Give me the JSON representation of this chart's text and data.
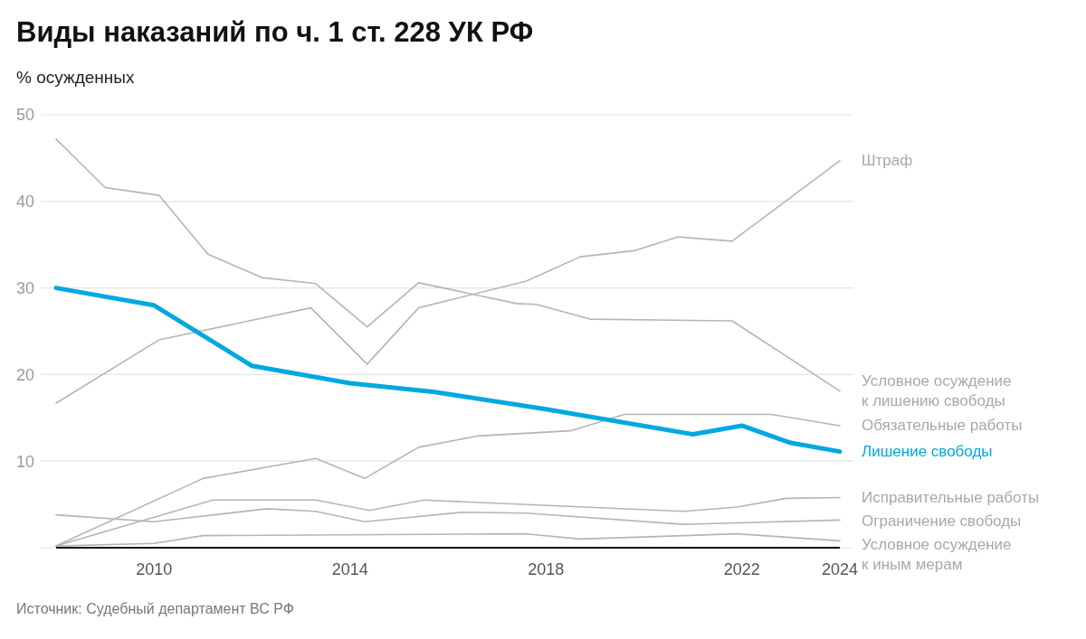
{
  "chart_data": {
    "type": "line",
    "title": "Виды наказаний по ч. 1 ст. 228 УК РФ",
    "ylabel": "% осужденных",
    "annotations": [
      "Источник: Судебный департамент ВС РФ"
    ],
    "xlim": [
      2008,
      2024
    ],
    "xticks": [
      2010,
      2014,
      2018,
      2022,
      2024
    ],
    "ylim": [
      0,
      50
    ],
    "yticks": [
      {
        "value": 0,
        "label": null
      },
      10,
      20,
      30,
      40,
      50
    ],
    "grid": "y",
    "marker": "none",
    "line_style": "solid",
    "series": [
      {
        "name": "Штраф",
        "color": "#b5b5b5",
        "x": [
          2008,
          2010.1,
          2013.2,
          2014.35,
          2015.4,
          2017.6,
          2018.7,
          2019.8,
          2020.7,
          2021.8,
          2024
        ],
        "values": [
          16.7,
          24.0,
          27.7,
          21.2,
          27.7,
          30.8,
          33.6,
          34.3,
          35.9,
          35.4,
          44.7
        ]
      },
      {
        "name": "Условное осуждение\nк лишению свободы",
        "color": "#b5b5b5",
        "x": [
          2008,
          2009,
          2010.1,
          2011.1,
          2012.2,
          2013.3,
          2014.35,
          2015.4,
          2017.4,
          2017.8,
          2018.9,
          2021.8,
          2024
        ],
        "values": [
          47.2,
          41.6,
          40.7,
          33.9,
          31.2,
          30.5,
          25.5,
          30.6,
          28.2,
          28.1,
          26.4,
          26.2,
          18.1
        ]
      },
      {
        "name": "Обязательные работы",
        "color": "#b5b5b5",
        "x": [
          2008,
          2011,
          2013.3,
          2014.3,
          2015.4,
          2016.6,
          2018.5,
          2019.6,
          2022.6,
          2024
        ],
        "values": [
          0.2,
          8.0,
          10.3,
          8.0,
          11.6,
          12.9,
          13.5,
          15.4,
          15.4,
          14.1
        ]
      },
      {
        "name": "Лишение свободы",
        "color": "#00a8e0",
        "x": [
          2008,
          2010,
          2012,
          2014,
          2015.7,
          2018,
          2021,
          2022,
          2023,
          2024
        ],
        "values": [
          30.0,
          28.0,
          21.0,
          19.0,
          18.0,
          16.0,
          13.1,
          14.1,
          12.1,
          11.1
        ]
      },
      {
        "name": "Исправительные работы",
        "color": "#b5b5b5",
        "x": [
          2008,
          2011.2,
          2013.3,
          2014.4,
          2015.5,
          2020.8,
          2021.9,
          2022.9,
          2024
        ],
        "values": [
          0.2,
          5.5,
          5.5,
          4.3,
          5.5,
          4.2,
          4.7,
          5.7,
          5.8
        ]
      },
      {
        "name": "Ограничение свободы",
        "color": "#b5b5b5",
        "x": [
          2008,
          2010,
          2012.3,
          2013.3,
          2014.3,
          2016.3,
          2017.6,
          2020.8,
          2024
        ],
        "values": [
          3.8,
          3.0,
          4.5,
          4.2,
          3.0,
          4.1,
          4.0,
          2.7,
          3.2
        ]
      },
      {
        "name": "Условное осуждение\nк иным мерам",
        "color": "#b5b5b5",
        "x": [
          2008,
          2010,
          2011,
          2017.6,
          2018.7,
          2021.9,
          2024
        ],
        "values": [
          0.2,
          0.5,
          1.4,
          1.6,
          1.0,
          1.6,
          0.8
        ]
      }
    ]
  }
}
